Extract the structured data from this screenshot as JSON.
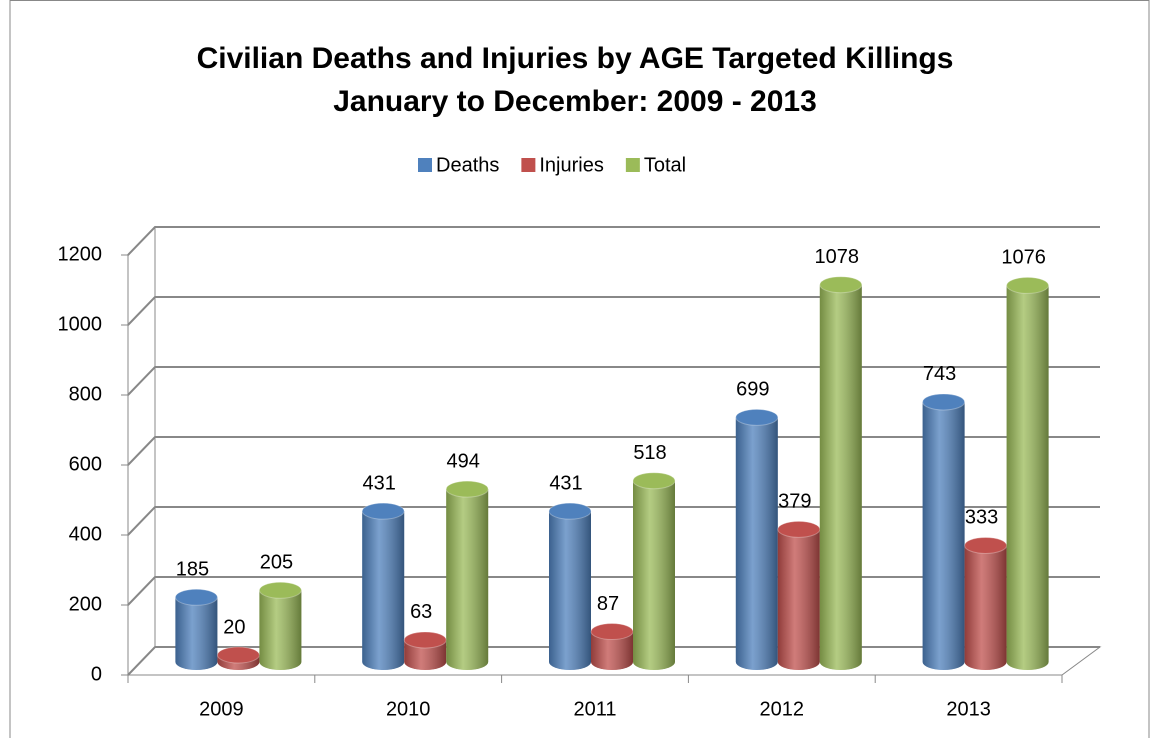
{
  "chart_data": {
    "type": "bar3d",
    "title": "Civilian Deaths and Injuries by AGE Targeted Killings",
    "subtitle": "January to December: 2009 - 2013",
    "categories": [
      "2009",
      "2010",
      "2011",
      "2012",
      "2013"
    ],
    "series": [
      {
        "name": "Deaths",
        "color": "#4f81bd",
        "values": [
          185,
          431,
          431,
          699,
          743
        ]
      },
      {
        "name": "Injuries",
        "color": "#c0504d",
        "values": [
          20,
          63,
          87,
          379,
          333
        ]
      },
      {
        "name": "Total",
        "color": "#9bbb59",
        "values": [
          205,
          494,
          518,
          1078,
          1076
        ]
      }
    ],
    "ylim": [
      0,
      1200
    ],
    "yticks": [
      0,
      200,
      400,
      600,
      800,
      1000,
      1200
    ],
    "grid": true,
    "legend": "top"
  }
}
